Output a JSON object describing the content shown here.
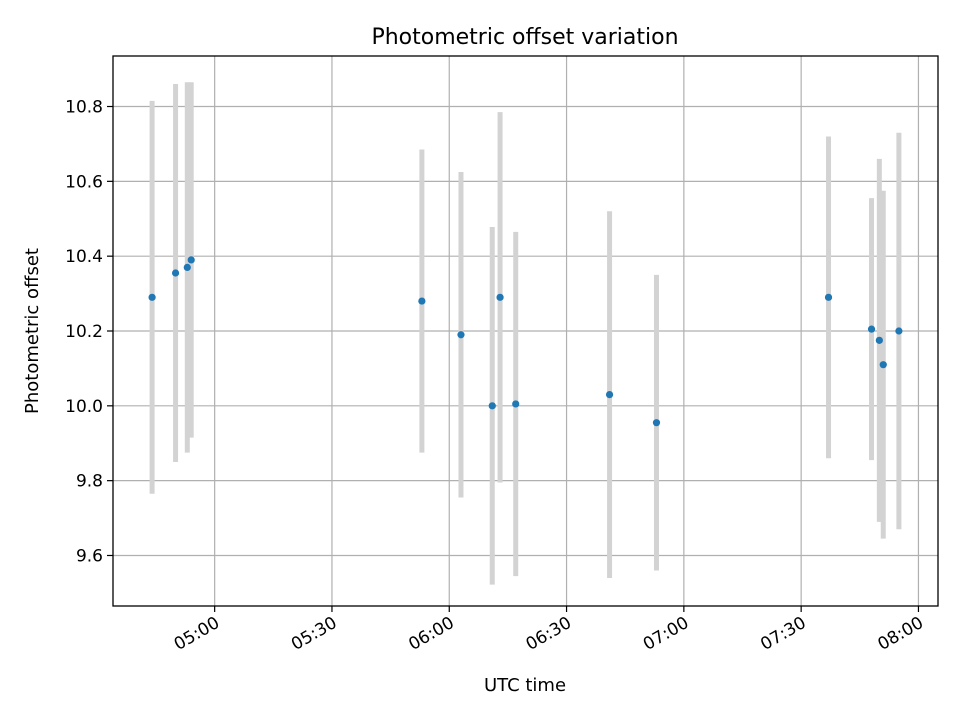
{
  "chart_data": {
    "type": "scatter",
    "title": "Photometric offset variation",
    "xlabel": "UTC time",
    "ylabel": "Photometric offset",
    "x_axis_type": "time",
    "xlim": [
      "04:34",
      "08:05"
    ],
    "ylim": [
      9.465,
      10.935
    ],
    "x_ticks": [
      "05:00",
      "05:30",
      "06:00",
      "06:30",
      "07:00",
      "07:30",
      "08:00"
    ],
    "y_ticks": [
      9.6,
      9.8,
      10.0,
      10.2,
      10.4,
      10.6,
      10.8
    ],
    "y_tick_labels": [
      "9.6",
      "9.8",
      "10.0",
      "10.2",
      "10.4",
      "10.6",
      "10.8"
    ],
    "grid": true,
    "point_color": "#1f77b4",
    "error_bar_color": "#d3d3d3",
    "points": [
      {
        "x": "04:44",
        "y": 10.29,
        "yerr": 0.525
      },
      {
        "x": "04:50",
        "y": 10.355,
        "yerr": 0.505
      },
      {
        "x": "04:53",
        "y": 10.37,
        "yerr": 0.495
      },
      {
        "x": "04:54",
        "y": 10.39,
        "yerr": 0.475
      },
      {
        "x": "05:53",
        "y": 10.28,
        "yerr": 0.405
      },
      {
        "x": "06:03",
        "y": 10.19,
        "yerr": 0.435
      },
      {
        "x": "06:11",
        "y": 10.0,
        "yerr": 0.478
      },
      {
        "x": "06:13",
        "y": 10.29,
        "yerr": 0.495
      },
      {
        "x": "06:17",
        "y": 10.005,
        "yerr": 0.46
      },
      {
        "x": "06:41",
        "y": 10.03,
        "yerr": 0.49
      },
      {
        "x": "06:53",
        "y": 9.955,
        "yerr": 0.395
      },
      {
        "x": "07:37",
        "y": 10.29,
        "yerr": 0.43
      },
      {
        "x": "07:48",
        "y": 10.205,
        "yerr": 0.35
      },
      {
        "x": "07:50",
        "y": 10.175,
        "yerr": 0.485
      },
      {
        "x": "07:51",
        "y": 10.11,
        "yerr": 0.465
      },
      {
        "x": "07:55",
        "y": 10.2,
        "yerr": 0.53
      }
    ]
  }
}
